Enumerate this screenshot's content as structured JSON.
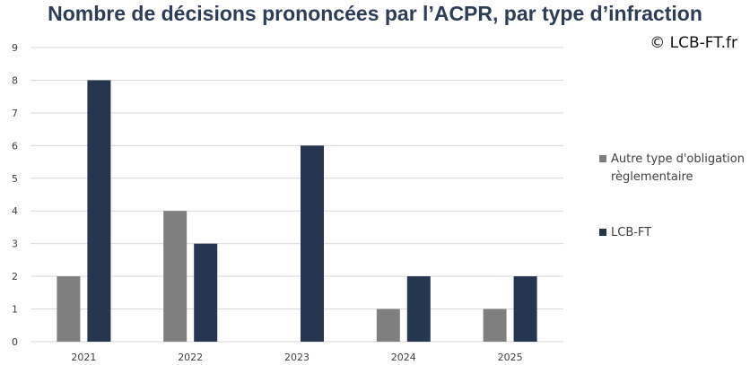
{
  "title": "Nombre de décisions prononcées par l’ACPR, par type d’infraction",
  "copyright": "© LCB-FT.fr",
  "colors": {
    "other": "#7f7f7f",
    "lcbft": "#263550",
    "grid": "#d9d9d9",
    "axis_text": "#404040"
  },
  "chart_data": {
    "type": "bar",
    "title": "Nombre de décisions prononcées par l’ACPR, par type d’infraction",
    "categories": [
      "2021",
      "2022",
      "2023",
      "2024",
      "2025"
    ],
    "series": [
      {
        "name": "Autre type d'obligation règlementaire",
        "values": [
          2,
          4,
          0,
          1,
          1
        ],
        "color": "#7f7f7f"
      },
      {
        "name": "LCB-FT",
        "values": [
          8,
          3,
          6,
          2,
          2
        ],
        "color": "#263550"
      }
    ],
    "xlabel": "",
    "ylabel": "",
    "ylim": [
      0,
      9
    ],
    "yticks": [
      0,
      1,
      2,
      3,
      4,
      5,
      6,
      7,
      8,
      9
    ],
    "grid": true,
    "legend_position": "right"
  }
}
